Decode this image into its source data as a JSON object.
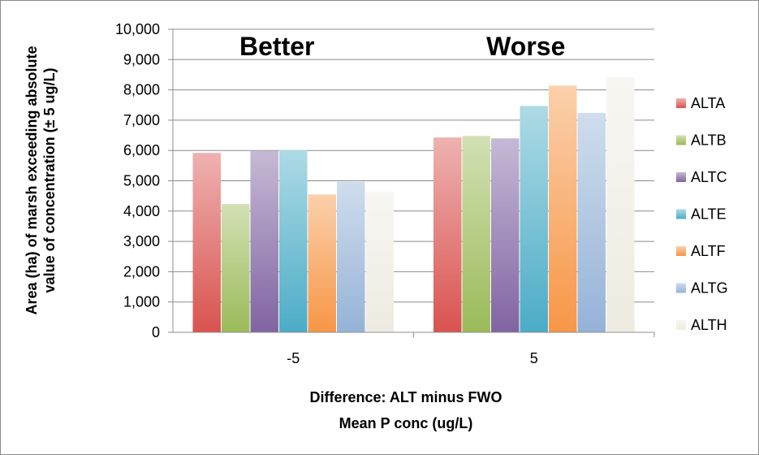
{
  "chart_data": {
    "type": "bar",
    "categories": [
      "-5",
      "5"
    ],
    "series": [
      {
        "name": "ALTA",
        "values": [
          5920,
          6430
        ],
        "color": "#d9534f"
      },
      {
        "name": "ALTB",
        "values": [
          4230,
          6480
        ],
        "color": "#9bbb59"
      },
      {
        "name": "ALTC",
        "values": [
          5980,
          6400
        ],
        "color": "#8064a2"
      },
      {
        "name": "ALTE",
        "values": [
          6010,
          7470
        ],
        "color": "#4bacc6"
      },
      {
        "name": "ALTF",
        "values": [
          4550,
          8140
        ],
        "color": "#f79646"
      },
      {
        "name": "ALTG",
        "values": [
          4970,
          7240
        ],
        "color": "#95b3d7"
      },
      {
        "name": "ALTH",
        "values": [
          4640,
          8420
        ],
        "color": "#eeece1"
      }
    ],
    "ylim": [
      0,
      10000
    ],
    "yticks": [
      "0",
      "1,000",
      "2,000",
      "3,000",
      "4,000",
      "5,000",
      "6,000",
      "7,000",
      "8,000",
      "9,000",
      "10,000"
    ],
    "ylabel_line1": "Area (ha) of marsh exceeding absolute",
    "ylabel_line2": "value of concentration (± 5 ug/L)",
    "xlabel_line1": "Difference: ALT minus FWO",
    "xlabel_line2": "Mean P conc (ug/L)",
    "annotations": [
      "Better",
      "Worse"
    ],
    "grid": true,
    "legend_position": "right"
  }
}
